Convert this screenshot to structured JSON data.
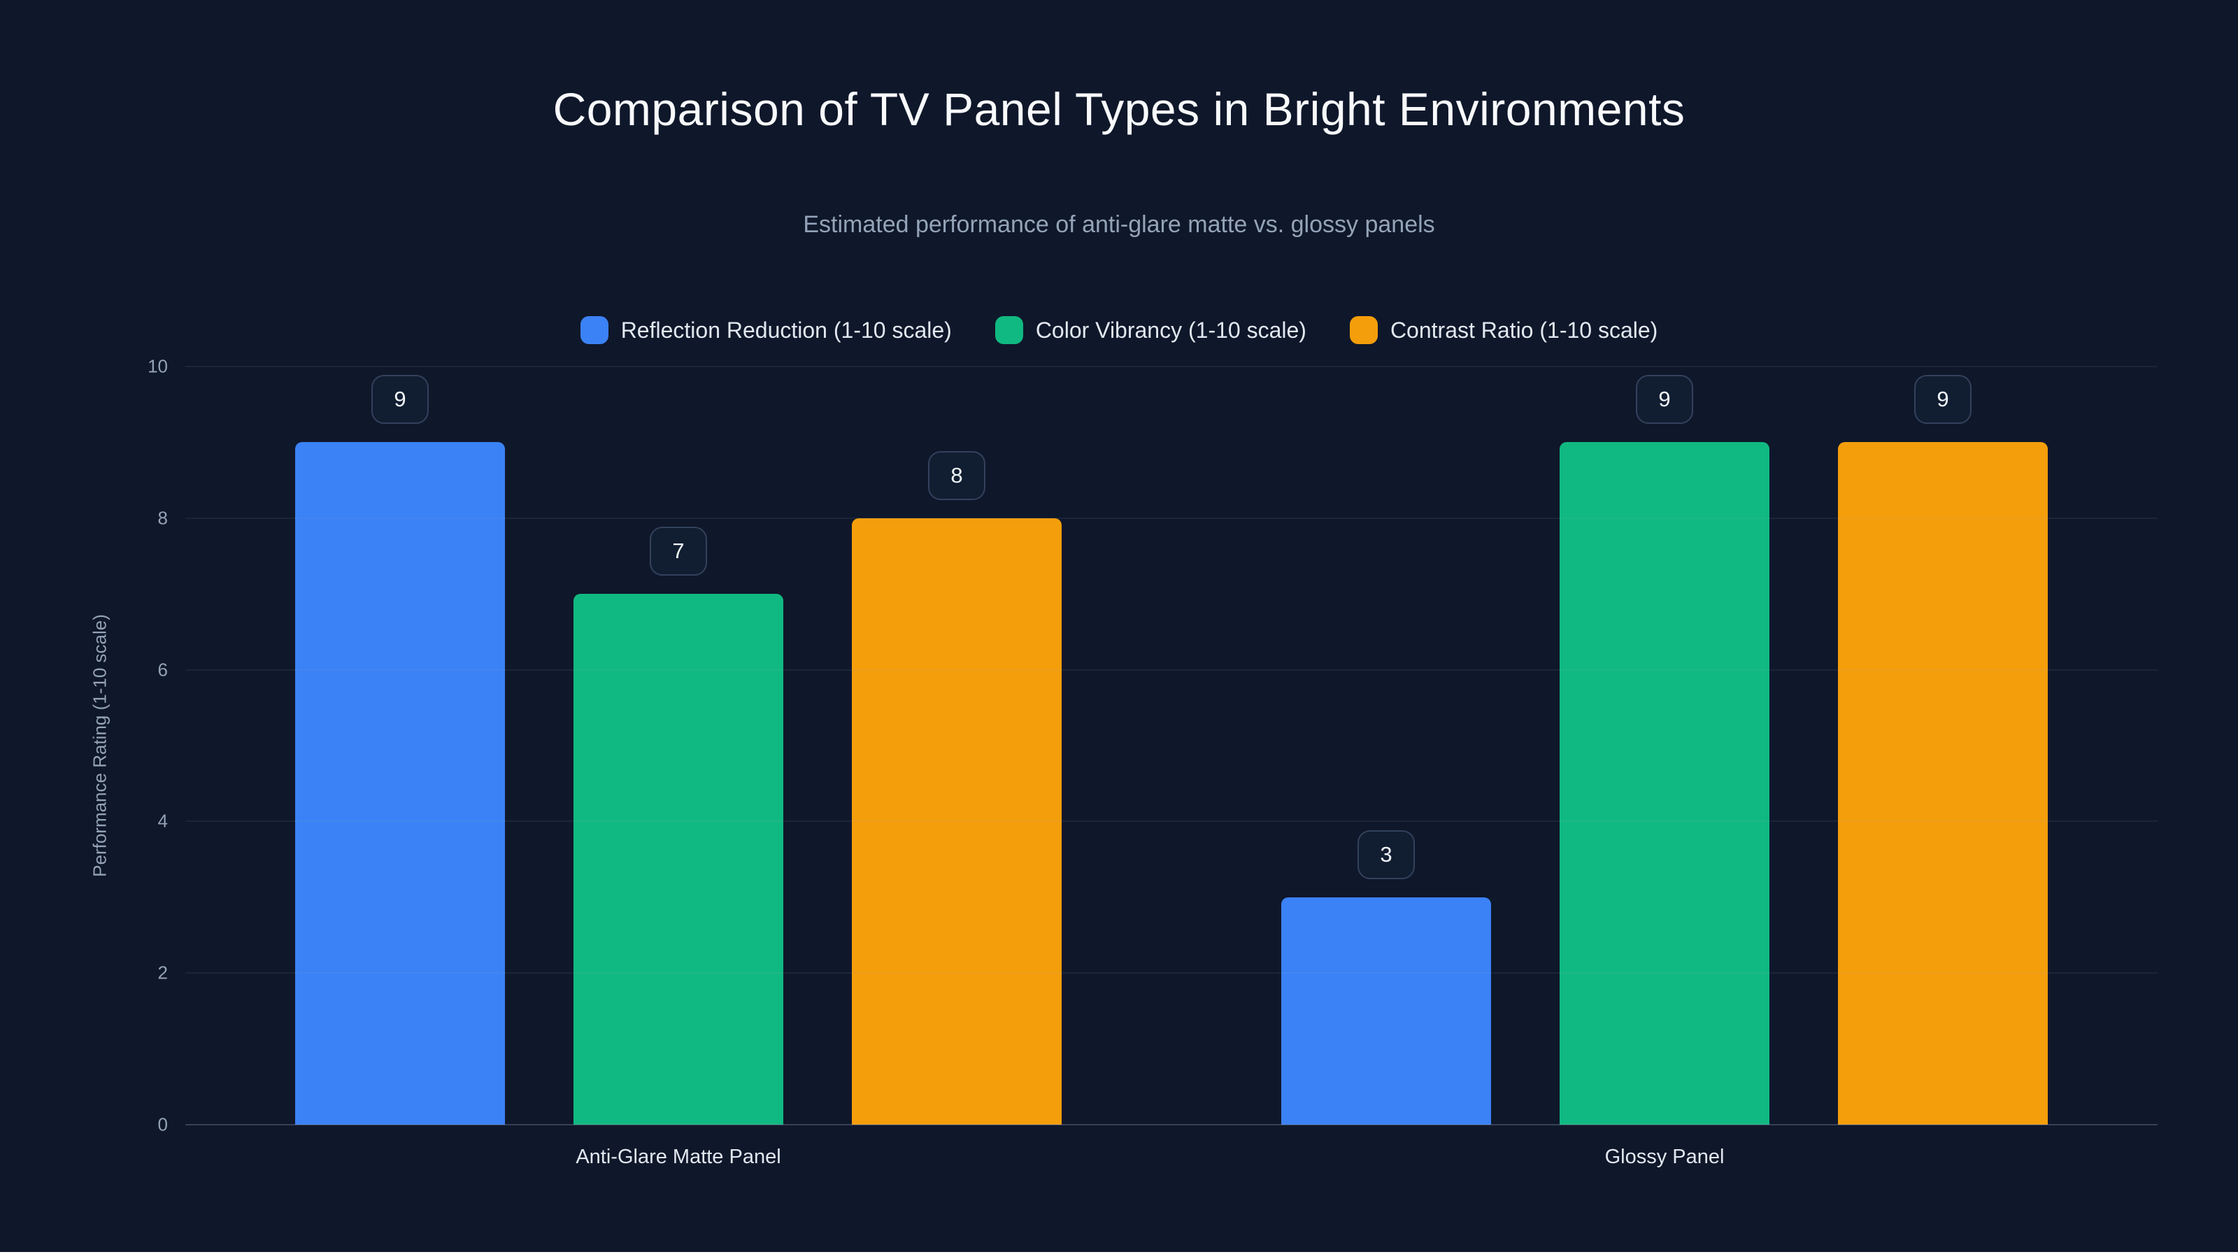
{
  "title": "Comparison of TV Panel Types in Bright Environments",
  "subtitle": "Estimated performance of anti-glare matte vs. glossy panels",
  "colors": {
    "background": "#0f172a",
    "series_blue": "#3b82f6",
    "series_green": "#10b981",
    "series_orange": "#f59e0b",
    "text_primary": "#f8fafc",
    "text_muted": "#94a3b8"
  },
  "chart_data": {
    "type": "bar",
    "categories": [
      "Anti-Glare Matte Panel",
      "Glossy Panel"
    ],
    "series": [
      {
        "name": "Reflection Reduction (1-10 scale)",
        "color": "#3b82f6",
        "values": [
          9,
          3
        ]
      },
      {
        "name": "Color Vibrancy (1-10 scale)",
        "color": "#10b981",
        "values": [
          7,
          9
        ]
      },
      {
        "name": "Contrast Ratio (1-10 scale)",
        "color": "#f59e0b",
        "values": [
          8,
          9
        ]
      }
    ],
    "xlabel": "",
    "ylabel": "Performance Rating (1-10 scale)",
    "ylim": [
      0,
      10
    ],
    "yticks": [
      0,
      2,
      4,
      6,
      8,
      10
    ],
    "grid": true,
    "legend_position": "top",
    "data_labels": true
  }
}
